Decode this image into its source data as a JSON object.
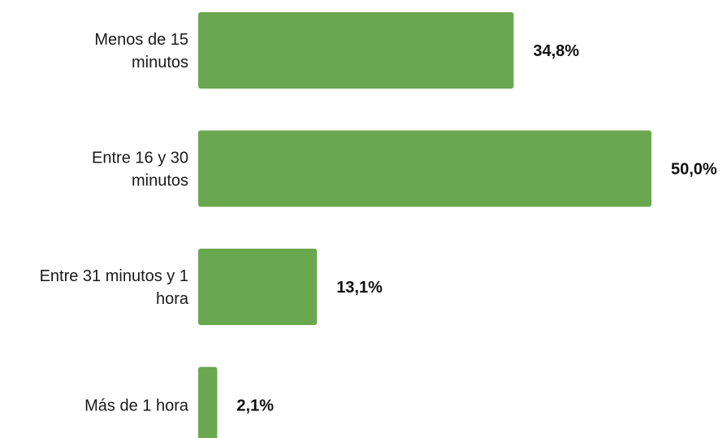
{
  "chart_data": {
    "type": "bar",
    "orientation": "horizontal",
    "categories": [
      [
        "Menos de 15",
        "minutos"
      ],
      [
        "Entre 16 y 30",
        "minutos"
      ],
      [
        "Entre 31 minutos y 1",
        "hora"
      ],
      [
        "Más de 1 hora"
      ]
    ],
    "values": [
      34.8,
      50.0,
      13.1,
      2.1
    ],
    "value_labels": [
      "34,8%",
      "50,0%",
      "13,1%",
      "2,1%"
    ],
    "title": "",
    "xlabel": "",
    "ylabel": "",
    "xlim": [
      0,
      50
    ],
    "grid": false,
    "legend": "none",
    "bar_color": "#6aa84f"
  }
}
